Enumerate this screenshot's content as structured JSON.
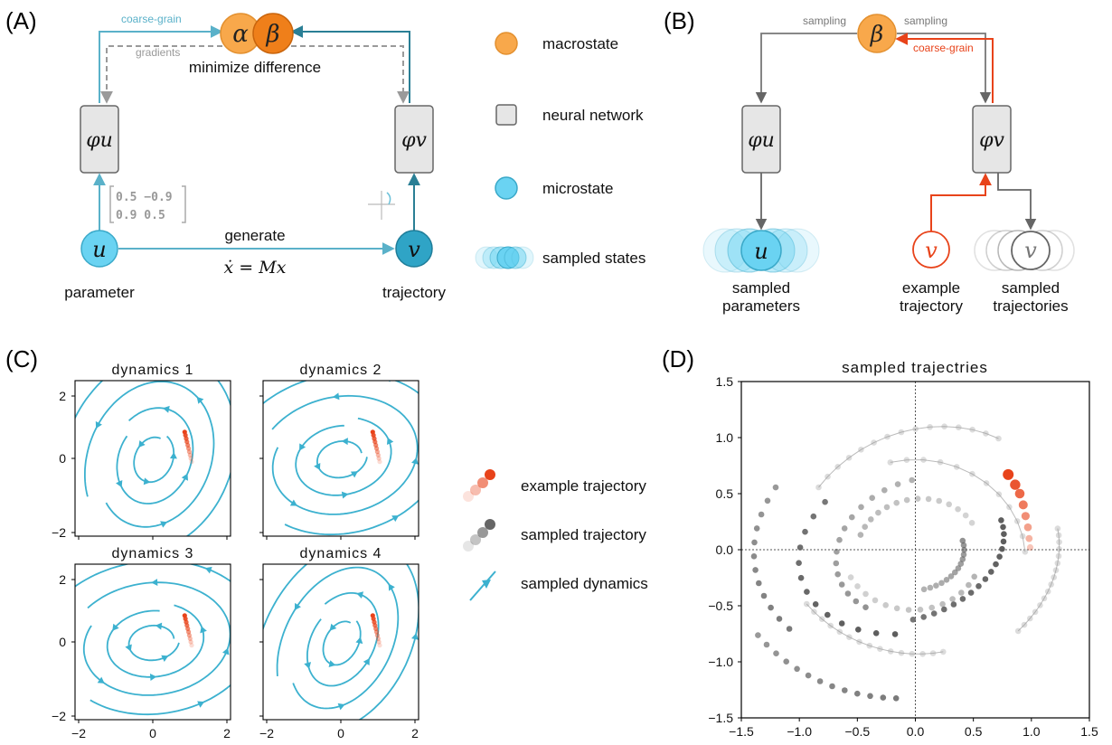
{
  "colors": {
    "macro": "#f8a84b",
    "macro_dark": "#ef7f1a",
    "micro": "#6ad3f2",
    "micro_dark": "#3aa9c9",
    "arrow_blue": "#5ab1c9",
    "arrow_teal": "#2a7f95",
    "nn_fill": "#e6e6e6",
    "nn_stroke": "#666666",
    "red": "#e8431a",
    "gray": "#777777",
    "stream": "#3cb1cf"
  },
  "panel_a": {
    "label": "(A)",
    "alpha": "α",
    "beta": "β",
    "coarse_grain": "coarse-grain",
    "gradients": "gradients",
    "minimize": "minimize difference",
    "phi_u": "φu",
    "phi_v": "φv",
    "u": "u",
    "v": "v",
    "generate": "generate",
    "equation": "ẋ = Mx",
    "matrix_row1": "0.5  −0.9",
    "matrix_row2": "0.9   0.5",
    "parameter": "parameter",
    "trajectory": "trajectory"
  },
  "legend_ab": {
    "macrostate": "macrostate",
    "neural_network": "neural network",
    "microstate": "microstate",
    "sampled_states": "sampled states"
  },
  "panel_b": {
    "label": "(B)",
    "beta": "β",
    "sampling_left": "sampling",
    "sampling_right": "sampling",
    "coarse_grain": "coarse-grain",
    "phi_u": "φu",
    "phi_v": "φv",
    "u": "u",
    "v": "v",
    "sampled_parameters_1": "sampled",
    "sampled_parameters_2": "parameters",
    "example_trajectory_1": "example",
    "example_trajectory_2": "trajectory",
    "sampled_trajectories_1": "sampled",
    "sampled_trajectories_2": "trajectories"
  },
  "panel_c": {
    "label": "(C)",
    "titles": [
      "dynamics 1",
      "dynamics 2",
      "dynamics 3",
      "dynamics 4"
    ],
    "ticks": [
      "−2",
      "0",
      "2"
    ]
  },
  "legend_c": {
    "example_trajectory": "example trajectory",
    "sampled_trajectory": "sampled trajectory",
    "sampled_dynamics": "sampled dynamics"
  },
  "chart_data": {
    "type": "scatter",
    "title": "sampled trajectries",
    "label": "(D)",
    "xlim": [
      -1.5,
      1.5
    ],
    "ylim": [
      -1.5,
      1.5
    ],
    "xticks": [
      "−1.5",
      "−1.0",
      "−0.5",
      "0.0",
      "0.5",
      "1.0",
      "1.5"
    ],
    "yticks": [
      "1.5",
      "1.0",
      "0.5",
      "0.0",
      "−0.5",
      "−1.0",
      "−1.5"
    ],
    "example_trajectory": {
      "x": [
        0.8,
        0.86,
        0.9,
        0.93,
        0.95,
        0.97,
        0.98,
        0.99
      ],
      "y": [
        0.67,
        0.58,
        0.5,
        0.4,
        0.3,
        0.2,
        0.1,
        0.02
      ]
    }
  }
}
